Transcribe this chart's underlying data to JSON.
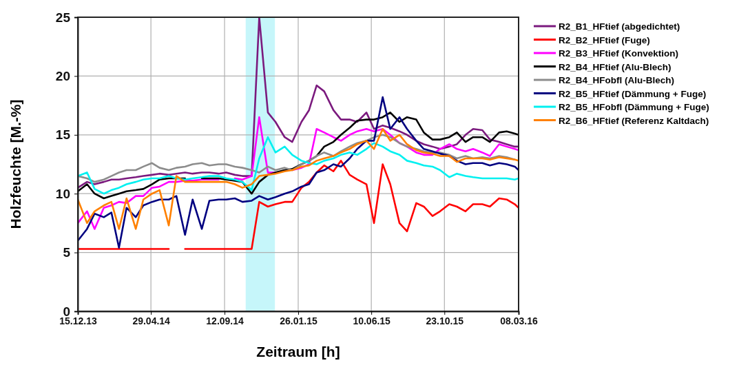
{
  "chart_data": {
    "type": "line",
    "xlabel": "Zeitraum [h]",
    "ylabel": "Holzfeuchte [M.-%]",
    "x": [
      "2013-12-15",
      "2014-01-01",
      "2014-01-15",
      "2014-02-01",
      "2014-02-15",
      "2014-03-01",
      "2014-03-15",
      "2014-04-01",
      "2014-04-15",
      "2014-05-01",
      "2014-05-15",
      "2014-06-01",
      "2014-06-15",
      "2014-07-01",
      "2014-07-15",
      "2014-08-01",
      "2014-08-15",
      "2014-09-01",
      "2014-09-15",
      "2014-10-01",
      "2014-10-15",
      "2014-11-01",
      "2014-11-15",
      "2014-12-01",
      "2014-12-15",
      "2015-01-01",
      "2015-01-15",
      "2015-02-01",
      "2015-02-15",
      "2015-03-01",
      "2015-03-15",
      "2015-04-01",
      "2015-04-15",
      "2015-05-01",
      "2015-05-15",
      "2015-06-01",
      "2015-06-15",
      "2015-07-01",
      "2015-07-15",
      "2015-08-01",
      "2015-08-15",
      "2015-09-01",
      "2015-09-15",
      "2015-10-01",
      "2015-10-15",
      "2015-11-01",
      "2015-11-15",
      "2015-12-01",
      "2015-12-15",
      "2016-01-01",
      "2016-01-15",
      "2016-02-01",
      "2016-02-15",
      "2016-03-01",
      "2016-03-08"
    ],
    "series": [
      {
        "name": "R2_B1_HFtief (abgedichtet)",
        "color": "#7b1a7e",
        "values": [
          10.5,
          11,
          10.8,
          11,
          11.2,
          11.2,
          11.3,
          11.4,
          11.5,
          11.6,
          11.7,
          11.6,
          11.7,
          11.8,
          11.7,
          11.8,
          11.8,
          11.7,
          11.8,
          11.6,
          11.5,
          11.5,
          25,
          16.9,
          16.1,
          14.8,
          14.4,
          16.1,
          17.1,
          19.2,
          18.7,
          17.1,
          16.3,
          16.3,
          16.1,
          16.9,
          15.5,
          15.8,
          15.6,
          15.3,
          15,
          14.5,
          14.2,
          14,
          13.8,
          14,
          14.2,
          15,
          15.5,
          15.4,
          14.6,
          14.4,
          14.2,
          14,
          14
        ]
      },
      {
        "name": "R2_B2_HFtief (Fuge)",
        "color": "#ff0000",
        "values": [
          5.3,
          5.3,
          5.3,
          5.3,
          5.3,
          5.3,
          5.3,
          5.3,
          5.3,
          5.3,
          5.3,
          5.3,
          null,
          5.3,
          5.3,
          5.3,
          5.3,
          5.3,
          5.3,
          5.3,
          5.3,
          5.3,
          9.3,
          8.9,
          9.1,
          9.3,
          9.3,
          10.5,
          11,
          11.8,
          12.4,
          11.9,
          12.8,
          11.6,
          11.2,
          10.8,
          7.5,
          12.5,
          10.8,
          7.5,
          6.8,
          9.2,
          8.9,
          8.1,
          8.5,
          9.1,
          8.9,
          8.5,
          9.1,
          9.1,
          8.9,
          9.6,
          9.5,
          9.1,
          8.8
        ]
      },
      {
        "name": "R2_B3_HFtief (Konvektion)",
        "color": "#ff00ff",
        "values": [
          7.5,
          8.5,
          7,
          8.8,
          9,
          9.3,
          9.2,
          9.8,
          9.8,
          10.5,
          10.6,
          11,
          11,
          11.1,
          11.1,
          11.2,
          11.2,
          11.2,
          null,
          11.3,
          11.2,
          11.5,
          16.5,
          11.8,
          11.8,
          null,
          12,
          12.2,
          12.5,
          15.5,
          15.2,
          14.8,
          14.5,
          15,
          15.3,
          15.5,
          15.3,
          15.5,
          15,
          14.3,
          14,
          13.5,
          13.3,
          13.3,
          13.8,
          14.2,
          13.8,
          13.6,
          13.8,
          13.5,
          13.2,
          14.2,
          14,
          13.8,
          13.7
        ]
      },
      {
        "name": "R2_B4_HFtief (Alu-Blech)",
        "color": "#000000",
        "values": [
          10.2,
          10.8,
          10,
          9.6,
          9.8,
          10,
          10.2,
          10.3,
          10.4,
          10.8,
          11.2,
          11.3,
          11.3,
          11.3,
          null,
          11.3,
          11.3,
          11.3,
          11.2,
          11.1,
          11,
          10,
          11,
          11.6,
          11.8,
          12,
          12.1,
          12.5,
          12.8,
          13.2,
          14,
          14.4,
          15,
          15.6,
          16.2,
          16.3,
          16.3,
          16.5,
          16.9,
          16.1,
          16.5,
          16.3,
          15.2,
          14.6,
          14.6,
          14.8,
          15.2,
          14.4,
          14.8,
          14.8,
          14.4,
          15.2,
          15.3,
          15.1,
          15
        ]
      },
      {
        "name": "R2_B4_HFobfl (Alu-Blech)",
        "color": "#8c8c8c",
        "values": [
          11.5,
          11.3,
          11,
          11.2,
          11.5,
          11.8,
          12,
          12,
          12.3,
          12.6,
          12.2,
          12,
          12.2,
          12.3,
          12.5,
          12.6,
          12.4,
          12.5,
          12.5,
          12.3,
          12.2,
          12,
          11.8,
          12.3,
          12,
          12.2,
          12,
          12.5,
          12.8,
          13.2,
          13.5,
          13.2,
          13.6,
          14,
          14.3,
          14.5,
          14.8,
          15,
          14.8,
          14.3,
          14,
          13.8,
          13.6,
          13.5,
          13.5,
          13.3,
          13,
          13.2,
          13,
          13.1,
          13,
          13.2,
          13.1,
          12.9,
          null
        ]
      },
      {
        "name": "R2_B5_HFtief (Dämmung + Fuge)",
        "color": "#000080",
        "values": [
          6,
          7,
          8.3,
          8,
          8.4,
          5.4,
          8.8,
          8,
          9,
          9.3,
          9.5,
          9.5,
          9.8,
          6.5,
          9.5,
          7,
          9.4,
          9.5,
          9.5,
          9.6,
          9.3,
          9.4,
          9.8,
          9.5,
          9.7,
          10,
          10.2,
          10.6,
          10.8,
          11.8,
          12,
          12.5,
          12.3,
          13,
          13.8,
          14.5,
          14.5,
          18.2,
          15.5,
          16.5,
          15.5,
          14.5,
          13.8,
          13.6,
          13.4,
          13.2,
          12.8,
          12.5,
          12.6,
          12.6,
          12.4,
          12.6,
          12.5,
          12.3,
          12
        ]
      },
      {
        "name": "R2_B5_HFobfl (Dämmung + Fuge)",
        "color": "#00f0f0",
        "values": [
          11.5,
          11.8,
          10.4,
          10,
          10.3,
          10.5,
          10.8,
          11,
          11.2,
          11.3,
          11.3,
          11.5,
          11.3,
          11.2,
          11.3,
          11.4,
          11.5,
          11.5,
          11.3,
          11.2,
          11,
          10.3,
          13,
          14.8,
          13.5,
          14,
          13.3,
          12.8,
          12.6,
          12.5,
          12.8,
          13,
          13.3,
          13.5,
          13.3,
          13.8,
          14.3,
          14,
          13.6,
          13.3,
          12.8,
          12.6,
          12.4,
          12.3,
          12,
          11.4,
          11.7,
          11.5,
          11.4,
          11.3,
          11.3,
          11.3,
          11.3,
          11.2,
          11.3
        ]
      },
      {
        "name": "R2_B6_HFtief (Referenz Kaltdach)",
        "color": "#ff8000",
        "values": [
          9.5,
          7.5,
          8.5,
          9,
          9.3,
          7,
          9.6,
          7,
          9.5,
          10,
          10.3,
          7.3,
          11.5,
          11,
          11,
          11,
          11,
          11,
          11,
          10.8,
          10.5,
          10.8,
          11.5,
          11.6,
          11.7,
          11.9,
          12,
          12.3,
          12.4,
          12.8,
          13,
          13.2,
          13.5,
          13.8,
          14.2,
          14.5,
          13.8,
          15.5,
          14.5,
          15,
          14.2,
          13.7,
          13.5,
          13.4,
          13.2,
          13.2,
          12.7,
          13,
          13,
          13,
          12.9,
          13.1,
          13,
          12.9,
          12.8
        ]
      }
    ],
    "xlim": [
      "2013-12-15",
      "2016-03-08"
    ],
    "xticks": [
      {
        "value": "2013-12-15",
        "label": "15.12.13"
      },
      {
        "value": "2014-04-29",
        "label": "29.04.14"
      },
      {
        "value": "2014-09-12",
        "label": "12.09.14"
      },
      {
        "value": "2015-01-26",
        "label": "26.01.15"
      },
      {
        "value": "2015-06-10",
        "label": "10.06.15"
      },
      {
        "value": "2015-10-23",
        "label": "23.10.15"
      },
      {
        "value": "2016-03-08",
        "label": "08.03.16"
      }
    ],
    "ylim": [
      0,
      25
    ],
    "yticks": [
      0,
      5,
      10,
      15,
      20,
      25
    ],
    "bands": [
      {
        "axis": "x",
        "from": "2014-10-21",
        "to": "2014-12-14",
        "color": "#c6f6fa"
      }
    ],
    "grid": true,
    "legend": "right"
  }
}
